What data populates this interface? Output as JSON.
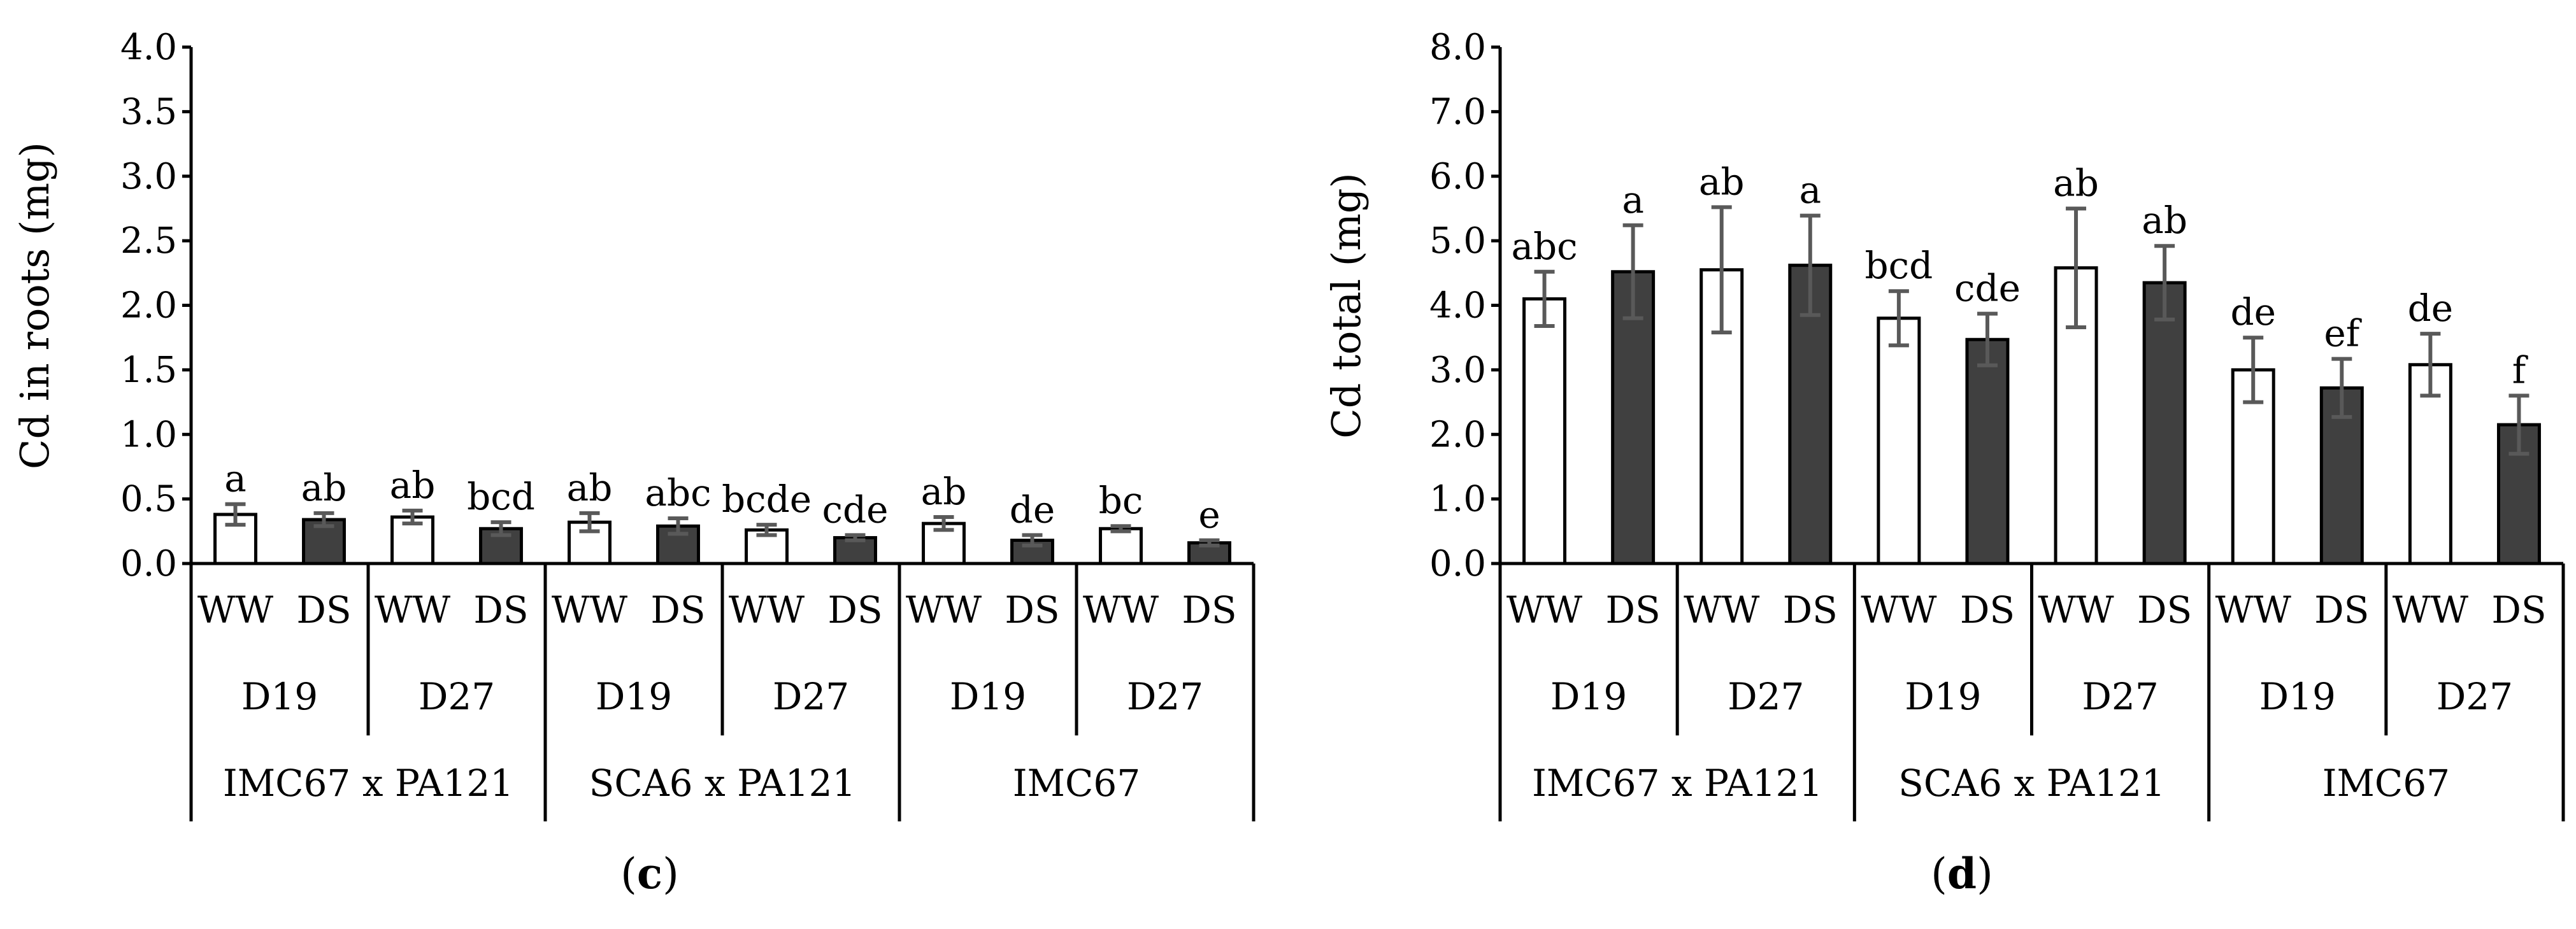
{
  "chart_data": [
    {
      "type": "bar",
      "panel_label": "c",
      "ylabel": "Cd in roots (mg)",
      "ylim": [
        0,
        4
      ],
      "yticks": [
        "0.0",
        "0.5",
        "1.0",
        "1.5",
        "2.0",
        "2.5",
        "3.0",
        "3.5",
        "4.0"
      ],
      "treatments": [
        "WW",
        "DS"
      ],
      "dates": [
        "D19",
        "D27"
      ],
      "groups": [
        "IMC67 x PA121",
        "SCA6 x PA121",
        "IMC67"
      ],
      "colors": {
        "WW": "#ffffff",
        "DS": "#404040"
      },
      "bars": [
        {
          "group": "IMC67 x PA121",
          "date": "D19",
          "treatment": "WW",
          "value": 0.38,
          "error": 0.08,
          "label": "a"
        },
        {
          "group": "IMC67 x PA121",
          "date": "D19",
          "treatment": "DS",
          "value": 0.34,
          "error": 0.05,
          "label": "ab"
        },
        {
          "group": "IMC67 x PA121",
          "date": "D27",
          "treatment": "WW",
          "value": 0.36,
          "error": 0.05,
          "label": "ab"
        },
        {
          "group": "IMC67 x PA121",
          "date": "D27",
          "treatment": "DS",
          "value": 0.27,
          "error": 0.05,
          "label": "bcd"
        },
        {
          "group": "SCA6 x PA121",
          "date": "D19",
          "treatment": "WW",
          "value": 0.32,
          "error": 0.07,
          "label": "ab"
        },
        {
          "group": "SCA6 x PA121",
          "date": "D19",
          "treatment": "DS",
          "value": 0.29,
          "error": 0.06,
          "label": "abc"
        },
        {
          "group": "SCA6 x PA121",
          "date": "D27",
          "treatment": "WW",
          "value": 0.26,
          "error": 0.04,
          "label": "bcde"
        },
        {
          "group": "SCA6 x PA121",
          "date": "D27",
          "treatment": "DS",
          "value": 0.2,
          "error": 0.02,
          "label": "cde"
        },
        {
          "group": "IMC67",
          "date": "D19",
          "treatment": "WW",
          "value": 0.31,
          "error": 0.05,
          "label": "ab"
        },
        {
          "group": "IMC67",
          "date": "D19",
          "treatment": "DS",
          "value": 0.18,
          "error": 0.04,
          "label": "de"
        },
        {
          "group": "IMC67",
          "date": "D27",
          "treatment": "WW",
          "value": 0.27,
          "error": 0.02,
          "label": "bc"
        },
        {
          "group": "IMC67",
          "date": "D27",
          "treatment": "DS",
          "value": 0.16,
          "error": 0.02,
          "label": "e"
        }
      ]
    },
    {
      "type": "bar",
      "panel_label": "d",
      "ylabel": "Cd total (mg)",
      "ylim": [
        0,
        8
      ],
      "yticks": [
        "0.0",
        "1.0",
        "2.0",
        "3.0",
        "4.0",
        "5.0",
        "6.0",
        "7.0",
        "8.0"
      ],
      "treatments": [
        "WW",
        "DS"
      ],
      "dates": [
        "D19",
        "D27"
      ],
      "groups": [
        "IMC67 x PA121",
        "SCA6 x PA121",
        "IMC67"
      ],
      "colors": {
        "WW": "#ffffff",
        "DS": "#404040"
      },
      "bars": [
        {
          "group": "IMC67 x PA121",
          "date": "D19",
          "treatment": "WW",
          "value": 4.1,
          "error": 0.42,
          "label": "abc"
        },
        {
          "group": "IMC67 x PA121",
          "date": "D19",
          "treatment": "DS",
          "value": 4.52,
          "error": 0.72,
          "label": "a"
        },
        {
          "group": "IMC67 x PA121",
          "date": "D27",
          "treatment": "WW",
          "value": 4.55,
          "error": 0.97,
          "label": "ab"
        },
        {
          "group": "IMC67 x PA121",
          "date": "D27",
          "treatment": "DS",
          "value": 4.62,
          "error": 0.77,
          "label": "a"
        },
        {
          "group": "SCA6 x PA121",
          "date": "D19",
          "treatment": "WW",
          "value": 3.8,
          "error": 0.42,
          "label": "bcd"
        },
        {
          "group": "SCA6 x PA121",
          "date": "D19",
          "treatment": "DS",
          "value": 3.47,
          "error": 0.4,
          "label": "cde"
        },
        {
          "group": "SCA6 x PA121",
          "date": "D27",
          "treatment": "WW",
          "value": 4.58,
          "error": 0.92,
          "label": "ab"
        },
        {
          "group": "SCA6 x PA121",
          "date": "D27",
          "treatment": "DS",
          "value": 4.35,
          "error": 0.57,
          "label": "ab"
        },
        {
          "group": "IMC67",
          "date": "D19",
          "treatment": "WW",
          "value": 3.0,
          "error": 0.5,
          "label": "de"
        },
        {
          "group": "IMC67",
          "date": "D19",
          "treatment": "DS",
          "value": 2.72,
          "error": 0.45,
          "label": "ef"
        },
        {
          "group": "IMC67",
          "date": "D27",
          "treatment": "WW",
          "value": 3.08,
          "error": 0.48,
          "label": "de"
        },
        {
          "group": "IMC67",
          "date": "D27",
          "treatment": "DS",
          "value": 2.15,
          "error": 0.45,
          "label": "f"
        }
      ]
    }
  ]
}
